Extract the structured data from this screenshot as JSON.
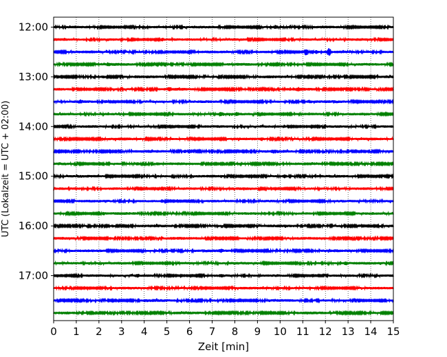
{
  "chart_data": {
    "type": "line",
    "title": "",
    "xlabel": "Zeit  [min]",
    "ylabel": "UTC (Lokalzeit = UTC + 02:00)",
    "xlim": [
      0,
      15
    ],
    "x_ticks": [
      "0",
      "1",
      "2",
      "3",
      "4",
      "5",
      "6",
      "7",
      "8",
      "9",
      "10",
      "11",
      "12",
      "13",
      "14",
      "15"
    ],
    "y_ticks": [
      "12:00",
      "13:00",
      "14:00",
      "15:00",
      "16:00",
      "17:00"
    ],
    "grid": "vertical dotted",
    "legend": "none",
    "color_cycle": [
      "#000000",
      "#ff0000",
      "#0000ff",
      "#008000"
    ],
    "traces": [
      {
        "start": "12:00",
        "color": "#000000",
        "events": [
          [
            9.8,
            1.6
          ]
        ]
      },
      {
        "start": "12:15",
        "color": "#ff0000",
        "events": [
          [
            4.8,
            1.3
          ]
        ]
      },
      {
        "start": "12:30",
        "color": "#0000ff",
        "events": [
          [
            11.15,
            5.5
          ],
          [
            12.15,
            4.5
          ],
          [
            11.6,
            1.8
          ]
        ]
      },
      {
        "start": "12:45",
        "color": "#008000",
        "events": [
          [
            2.4,
            1.3
          ]
        ]
      },
      {
        "start": "13:00",
        "color": "#000000",
        "events": [
          [
            2.2,
            1.2
          ]
        ]
      },
      {
        "start": "13:15",
        "color": "#ff0000",
        "events": [
          [
            5.1,
            1.3
          ],
          [
            10.8,
            1.4
          ]
        ]
      },
      {
        "start": "13:30",
        "color": "#0000ff",
        "events": [
          [
            1.2,
            1.5
          ],
          [
            2.3,
            1.5
          ],
          [
            11.3,
            1.6
          ]
        ]
      },
      {
        "start": "13:45",
        "color": "#008000",
        "events": [
          [
            7.4,
            1.9
          ],
          [
            8.1,
            1.5
          ]
        ]
      },
      {
        "start": "14:00",
        "color": "#000000",
        "events": [
          [
            10.2,
            1.3
          ]
        ]
      },
      {
        "start": "14:15",
        "color": "#ff0000",
        "events": [
          [
            9.2,
            1.3
          ]
        ]
      },
      {
        "start": "14:30",
        "color": "#0000ff",
        "events": [
          [
            5.8,
            1.5
          ],
          [
            9.7,
            1.3
          ]
        ]
      },
      {
        "start": "14:45",
        "color": "#008000",
        "events": [
          [
            3.7,
            1.4
          ],
          [
            4.6,
            1.2
          ]
        ]
      },
      {
        "start": "15:00",
        "color": "#000000",
        "events": [
          [
            10.2,
            1.6
          ]
        ]
      },
      {
        "start": "15:15",
        "color": "#ff0000",
        "events": [
          [
            9.5,
            1.4
          ]
        ]
      },
      {
        "start": "15:30",
        "color": "#0000ff",
        "events": [
          [
            4.8,
            1.4
          ]
        ]
      },
      {
        "start": "15:45",
        "color": "#008000",
        "events": [
          [
            2.2,
            1.3
          ]
        ]
      },
      {
        "start": "16:00",
        "color": "#000000",
        "events": [
          [
            2.6,
            1.2
          ],
          [
            13.5,
            1.4
          ]
        ]
      },
      {
        "start": "16:15",
        "color": "#ff0000",
        "events": [
          [
            2.5,
            1.2
          ]
        ]
      },
      {
        "start": "16:30",
        "color": "#0000ff",
        "events": [
          [
            7.4,
            1.5
          ]
        ]
      },
      {
        "start": "16:45",
        "color": "#008000",
        "events": [
          [
            12.9,
            1.6
          ]
        ]
      },
      {
        "start": "17:00",
        "color": "#000000",
        "events": [
          [
            3.7,
            1.6
          ],
          [
            7.4,
            1.3
          ]
        ]
      },
      {
        "start": "17:15",
        "color": "#ff0000",
        "events": []
      },
      {
        "start": "17:30",
        "color": "#0000ff",
        "events": []
      },
      {
        "start": "17:45",
        "color": "#008000",
        "events": []
      }
    ]
  }
}
